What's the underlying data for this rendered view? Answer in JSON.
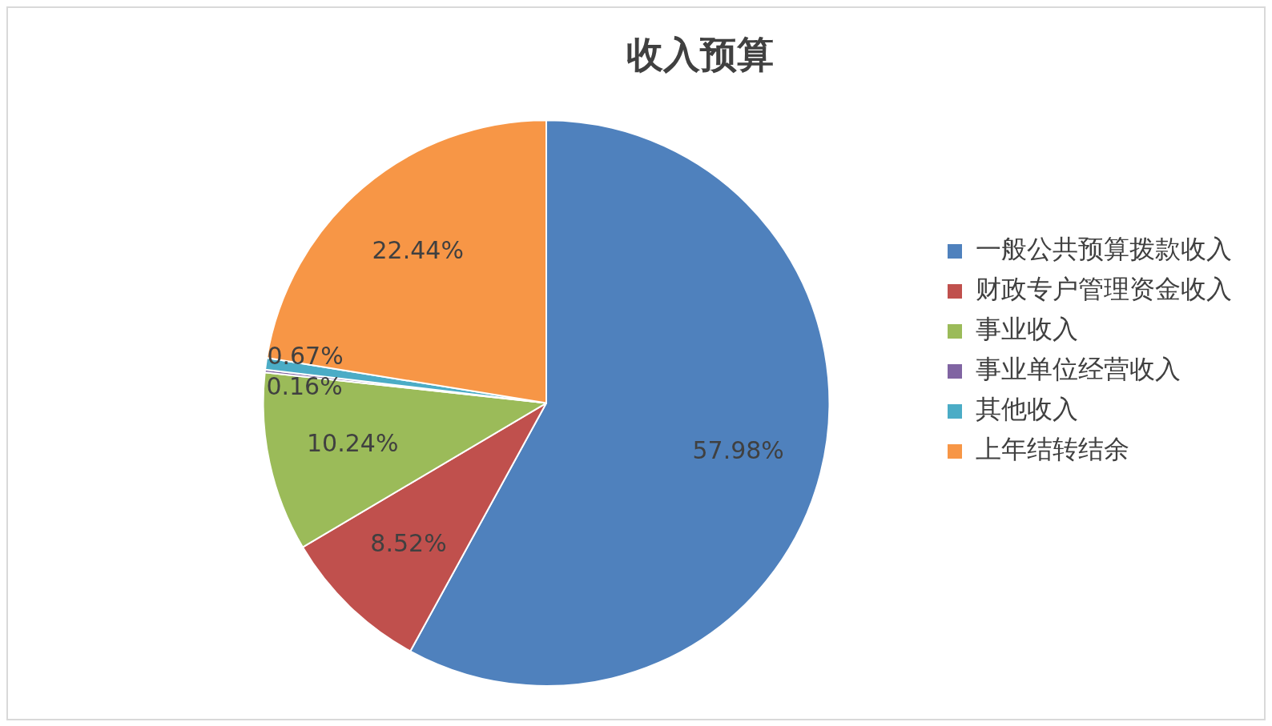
{
  "chart_data": {
    "type": "pie",
    "title": "收入预算",
    "categories": [
      "一般公共预算拨款收入",
      "财政专户管理资金收入",
      "事业收入",
      "事业单位经营收入",
      "其他收入",
      "上年结转结余"
    ],
    "values": [
      57.98,
      8.52,
      10.24,
      0.16,
      0.67,
      22.44
    ],
    "colors": [
      "#4f81bd",
      "#c0504d",
      "#9bbb59",
      "#8064a2",
      "#4bacc6",
      "#f79646"
    ],
    "value_labels": [
      "57.98%",
      "8.52%",
      "10.24%",
      "0.16%",
      "0.67%",
      "22.44%"
    ],
    "legend": "right"
  }
}
